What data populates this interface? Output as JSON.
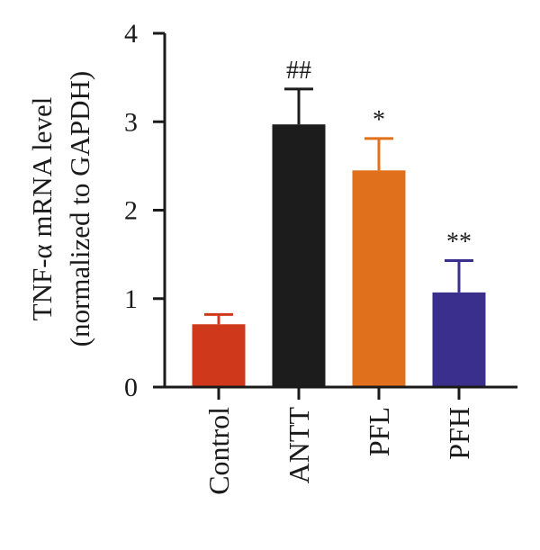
{
  "chart_data": {
    "type": "bar",
    "categories": [
      "Control",
      "ANTT",
      "PFL",
      "PFH"
    ],
    "values": [
      0.71,
      2.97,
      2.45,
      1.07
    ],
    "errors": [
      0.11,
      0.4,
      0.36,
      0.36
    ],
    "colors": [
      "#d0381c",
      "#1c1c1c",
      "#e0701c",
      "#3a2f8c"
    ],
    "annotations": [
      "",
      "##",
      "*",
      "**"
    ],
    "ylabel_line1": "TNF-α mRNA level",
    "ylabel_line2": "(normalized to GAPDH)",
    "ylim": [
      0,
      4
    ],
    "yticks": [
      0,
      1,
      2,
      3,
      4
    ],
    "grid": false,
    "legend": "none"
  }
}
